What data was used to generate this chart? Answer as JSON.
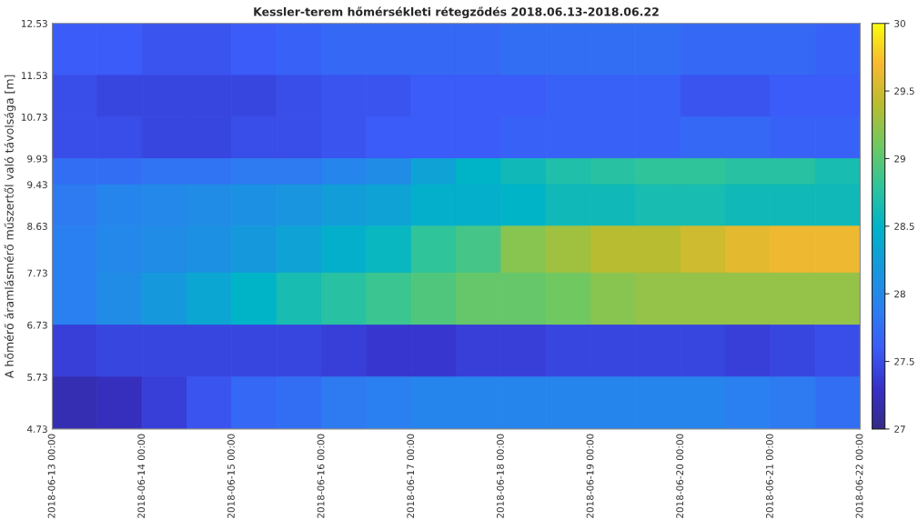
{
  "chart_data": {
    "type": "heatmap",
    "title": "Kessler-terem hőmérsékleti rétegződés 2018.06.13-2018.06.22",
    "ylabel": "A hőmérő áramlásmérő műszertől való távolsága [m]",
    "x": [
      "2018-06-13T06:00",
      "2018-06-13T18:00",
      "2018-06-14T06:00",
      "2018-06-14T18:00",
      "2018-06-15T06:00",
      "2018-06-15T18:00",
      "2018-06-16T06:00",
      "2018-06-16T18:00",
      "2018-06-17T06:00",
      "2018-06-17T18:00",
      "2018-06-18T06:00",
      "2018-06-18T18:00",
      "2018-06-19T06:00",
      "2018-06-19T18:00",
      "2018-06-20T06:00",
      "2018-06-20T18:00",
      "2018-06-21T06:00",
      "2018-06-21T18:00"
    ],
    "xlim": [
      "2018-06-13T00:00",
      "2018-06-22T00:00"
    ],
    "xticks": [
      {
        "value": "2018-06-13T00:00",
        "label": "2018-06-13 00:00"
      },
      {
        "value": "2018-06-14T00:00",
        "label": "2018-06-14 00:00"
      },
      {
        "value": "2018-06-15T00:00",
        "label": "2018-06-15 00:00"
      },
      {
        "value": "2018-06-16T00:00",
        "label": "2018-06-16 00:00"
      },
      {
        "value": "2018-06-17T00:00",
        "label": "2018-06-17 00:00"
      },
      {
        "value": "2018-06-18T00:00",
        "label": "2018-06-18 00:00"
      },
      {
        "value": "2018-06-19T00:00",
        "label": "2018-06-19 00:00"
      },
      {
        "value": "2018-06-20T00:00",
        "label": "2018-06-20 00:00"
      },
      {
        "value": "2018-06-21T00:00",
        "label": "2018-06-21 00:00"
      },
      {
        "value": "2018-06-22T00:00",
        "label": "2018-06-22 00:00"
      }
    ],
    "ylim": [
      4.73,
      12.53
    ],
    "yticks": [
      4.73,
      5.73,
      6.73,
      7.73,
      8.63,
      9.43,
      9.93,
      10.73,
      11.53,
      12.53
    ],
    "cells": [
      [
        27.6,
        27.6,
        27.55,
        27.55,
        27.6,
        27.65,
        27.7,
        27.7,
        27.7,
        27.7,
        27.75,
        27.75,
        27.75,
        27.75,
        27.7,
        27.7,
        27.7,
        27.65
      ],
      [
        27.5,
        27.45,
        27.45,
        27.45,
        27.45,
        27.5,
        27.55,
        27.55,
        27.6,
        27.6,
        27.6,
        27.65,
        27.65,
        27.65,
        27.55,
        27.55,
        27.6,
        27.6
      ],
      [
        27.5,
        27.5,
        27.45,
        27.45,
        27.5,
        27.5,
        27.55,
        27.6,
        27.6,
        27.6,
        27.65,
        27.65,
        27.65,
        27.65,
        27.7,
        27.7,
        27.65,
        27.65
      ],
      [
        27.75,
        27.75,
        27.8,
        27.8,
        27.85,
        27.85,
        27.95,
        28.05,
        28.3,
        28.5,
        28.6,
        28.7,
        28.75,
        28.8,
        28.8,
        28.75,
        28.75,
        28.65
      ],
      [
        27.85,
        27.95,
        28.0,
        28.05,
        28.1,
        28.15,
        28.25,
        28.3,
        28.45,
        28.45,
        28.5,
        28.6,
        28.6,
        28.65,
        28.65,
        28.6,
        28.6,
        28.6
      ],
      [
        27.9,
        28.0,
        28.05,
        28.1,
        28.2,
        28.3,
        28.45,
        28.55,
        28.8,
        28.9,
        29.2,
        29.3,
        29.4,
        29.4,
        29.5,
        29.6,
        29.65,
        29.65
      ],
      [
        27.9,
        28.05,
        28.2,
        28.35,
        28.5,
        28.65,
        28.75,
        28.85,
        28.95,
        29.05,
        29.05,
        29.1,
        29.2,
        29.25,
        29.25,
        29.25,
        29.25,
        29.25
      ],
      [
        27.4,
        27.45,
        27.45,
        27.45,
        27.45,
        27.45,
        27.4,
        27.35,
        27.35,
        27.4,
        27.4,
        27.45,
        27.45,
        27.45,
        27.45,
        27.4,
        27.45,
        27.5
      ],
      [
        27.2,
        27.25,
        27.4,
        27.55,
        27.7,
        27.75,
        27.85,
        27.9,
        27.95,
        27.95,
        27.95,
        27.95,
        27.95,
        27.95,
        27.95,
        27.9,
        27.85,
        27.75
      ]
    ],
    "clim": [
      27,
      30
    ],
    "cticks": [
      27,
      27.5,
      28,
      28.5,
      29,
      29.5,
      30
    ],
    "grid": false
  }
}
